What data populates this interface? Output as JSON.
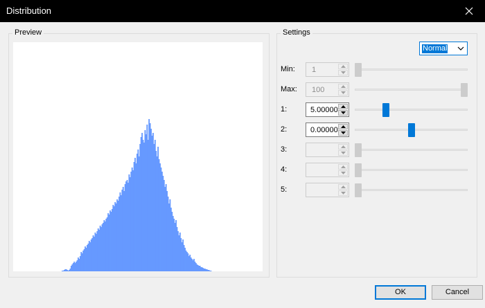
{
  "window": {
    "title": "Distribution"
  },
  "preview": {
    "legend": "Preview",
    "bar_color": "#6699ff",
    "histogram": [
      1,
      1,
      2,
      3,
      3,
      2,
      1,
      2,
      4,
      8,
      10,
      12,
      14,
      12,
      14,
      16,
      20,
      18,
      22,
      28,
      26,
      30,
      32,
      36,
      34,
      38,
      40,
      44,
      42,
      46,
      48,
      52,
      50,
      56,
      54,
      58,
      62,
      60,
      66,
      64,
      68,
      70,
      74,
      72,
      76,
      78,
      84,
      82,
      88,
      86,
      90,
      96,
      94,
      100,
      98,
      104,
      102,
      108,
      114,
      110,
      118,
      122,
      116,
      126,
      130,
      132,
      128,
      140,
      136,
      144,
      150,
      146,
      158,
      164,
      156,
      170,
      176,
      166,
      184,
      194,
      200,
      190,
      186,
      204,
      198,
      212,
      190,
      220,
      214,
      206,
      196,
      200,
      184,
      190,
      174,
      166,
      180,
      162,
      156,
      150,
      144,
      138,
      132,
      122,
      126,
      116,
      108,
      98,
      104,
      92,
      86,
      80,
      76,
      70,
      74,
      64,
      58,
      52,
      56,
      48,
      42,
      46,
      38,
      34,
      30,
      28,
      26,
      22,
      24,
      20,
      18,
      16,
      18,
      14,
      12,
      10,
      9,
      8,
      8,
      6,
      6,
      5,
      4,
      4,
      3,
      3,
      2,
      2,
      1,
      1
    ]
  },
  "settings": {
    "legend": "Settings",
    "distribution_type": "Normal",
    "rows": [
      {
        "key": "min",
        "label": "Min:",
        "value": "1",
        "enabled": false,
        "slider": 0.0
      },
      {
        "key": "max",
        "label": "Max:",
        "value": "100",
        "enabled": false,
        "slider": 1.0
      },
      {
        "key": "param1",
        "label": "1:",
        "value": "5.00000",
        "enabled": true,
        "slider": 0.26
      },
      {
        "key": "param2",
        "label": "2:",
        "value": "0.00000",
        "enabled": true,
        "slider": 0.5
      },
      {
        "key": "param3",
        "label": "3:",
        "value": "",
        "enabled": false,
        "slider": 0.0
      },
      {
        "key": "param4",
        "label": "4:",
        "value": "",
        "enabled": false,
        "slider": 0.0
      },
      {
        "key": "param5",
        "label": "5:",
        "value": "",
        "enabled": false,
        "slider": 0.0
      }
    ]
  },
  "buttons": {
    "ok": "OK",
    "cancel": "Cancel"
  }
}
